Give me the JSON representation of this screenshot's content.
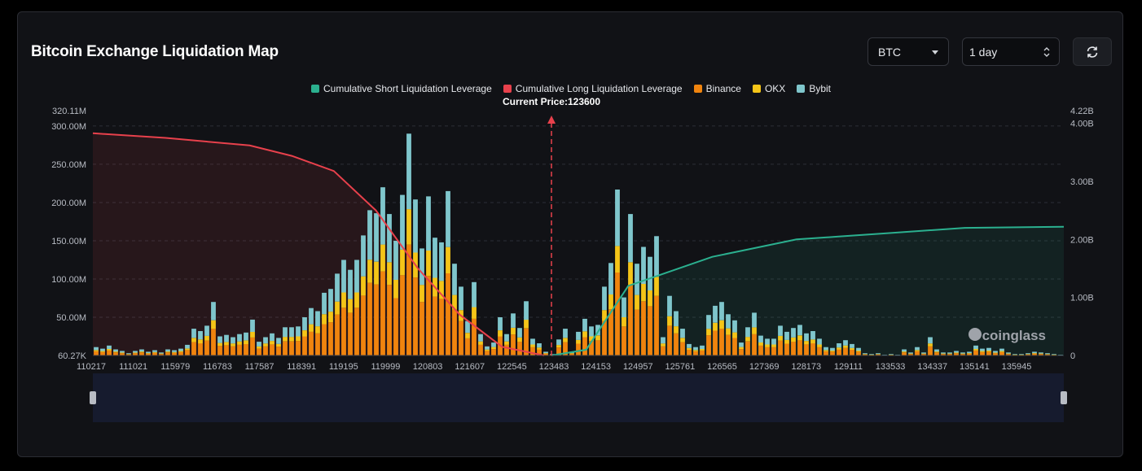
{
  "header": {
    "title": "Bitcoin Exchange Liquidation Map",
    "coin_select": "BTC",
    "interval_select": "1 day"
  },
  "colors": {
    "short": "#2bb08f",
    "long": "#e8414c",
    "binance": "#f0840e",
    "okx": "#f5c518",
    "bybit": "#7fc6cc"
  },
  "watermark": "coinglass",
  "chart_data": {
    "type": "bar",
    "legend": [
      {
        "name": "Cumulative Short Liquidation Leverage",
        "color": "#2bb08f"
      },
      {
        "name": "Cumulative Long Liquidation Leverage",
        "color": "#e8414c"
      },
      {
        "name": "Binance",
        "color": "#f0840e"
      },
      {
        "name": "OKX",
        "color": "#f5c518"
      },
      {
        "name": "Bybit",
        "color": "#7fc6cc"
      }
    ],
    "current_price_label": "Current Price:123600",
    "current_price": 123600,
    "x_ticks": [
      "110217",
      "111021",
      "115979",
      "116783",
      "117587",
      "118391",
      "119195",
      "119999",
      "120803",
      "121607",
      "122545",
      "123483",
      "124153",
      "124957",
      "125761",
      "126565",
      "127369",
      "128173",
      "129111",
      "133533",
      "134337",
      "135141",
      "135945"
    ],
    "y_left_ticks": [
      "60.27K",
      "50.00M",
      "100.00M",
      "150.00M",
      "200.00M",
      "250.00M",
      "300.00M",
      "320.11M"
    ],
    "y_left_range": [
      60270,
      320110000
    ],
    "y_right_ticks": [
      "0",
      "1.00B",
      "2.00B",
      "3.00B",
      "4.00B",
      "4.22B"
    ],
    "y_right_range": [
      0,
      4220000000
    ],
    "bar_totals_M": [
      11,
      9,
      13,
      8,
      6,
      3,
      6,
      8,
      5,
      7,
      4,
      8,
      7,
      9,
      14,
      35,
      32,
      39,
      70,
      25,
      27,
      24,
      28,
      30,
      47,
      18,
      24,
      29,
      23,
      37,
      37,
      38,
      50,
      62,
      58,
      82,
      87,
      107,
      125,
      112,
      125,
      157,
      190,
      186,
      220,
      185,
      150,
      210,
      290,
      204,
      140,
      208,
      154,
      148,
      215,
      120,
      90,
      45,
      96,
      28,
      12,
      17,
      50,
      28,
      55,
      36,
      71,
      22,
      16,
      5,
      2,
      21,
      35,
      5,
      31,
      48,
      38,
      40,
      90,
      121,
      217,
      76,
      185,
      120,
      142,
      129,
      156,
      24,
      78,
      58,
      35,
      15,
      11,
      13,
      53,
      65,
      70,
      54,
      46,
      17,
      37,
      56,
      26,
      22,
      22,
      39,
      31,
      36,
      40,
      29,
      32,
      22,
      11,
      10,
      16,
      20,
      15,
      10,
      3,
      2,
      3,
      1,
      2,
      1,
      8,
      4,
      11,
      4,
      24,
      8,
      4,
      4,
      6,
      4,
      5,
      13,
      9,
      10,
      6,
      9,
      4,
      2,
      2,
      3,
      5,
      4,
      3,
      2,
      1
    ],
    "long_cumulative_B": [
      {
        "x": 110217,
        "y": 3.83
      },
      {
        "x": 115979,
        "y": 3.75
      },
      {
        "x": 117587,
        "y": 3.62
      },
      {
        "x": 118391,
        "y": 3.44
      },
      {
        "x": 119195,
        "y": 3.18
      },
      {
        "x": 119999,
        "y": 2.5
      },
      {
        "x": 120803,
        "y": 1.5
      },
      {
        "x": 121607,
        "y": 0.7
      },
      {
        "x": 122545,
        "y": 0.15
      },
      {
        "x": 123483,
        "y": 0.0
      }
    ],
    "short_cumulative_B": [
      {
        "x": 123600,
        "y": 0.0
      },
      {
        "x": 124153,
        "y": 0.1
      },
      {
        "x": 124957,
        "y": 1.2
      },
      {
        "x": 125761,
        "y": 1.45
      },
      {
        "x": 126565,
        "y": 1.7
      },
      {
        "x": 127369,
        "y": 1.85
      },
      {
        "x": 128173,
        "y": 2.0
      },
      {
        "x": 129111,
        "y": 2.05
      },
      {
        "x": 133533,
        "y": 2.1
      },
      {
        "x": 135141,
        "y": 2.2
      },
      {
        "x": 135945,
        "y": 2.22
      }
    ]
  }
}
